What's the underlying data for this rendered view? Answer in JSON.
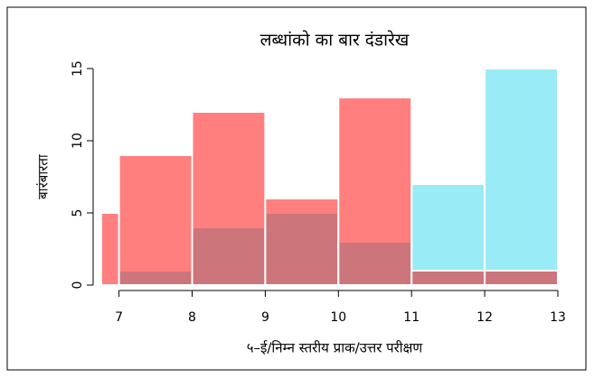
{
  "chart_data": {
    "type": "histogram",
    "title": "लब्धांको का बार दंडारेख",
    "xlabel": "५–ई/निम्न स्तरीय प्राक/उत्तर परीक्षण",
    "ylabel": "बारंबारता",
    "bins": [
      6,
      7,
      8,
      9,
      10,
      11,
      12,
      13
    ],
    "series": [
      {
        "color": "rgba(0,206,230,0.4)",
        "values": [
          0,
          1,
          4,
          5,
          3,
          7,
          15
        ]
      },
      {
        "color": "rgba(255,0,0,0.5)",
        "values": [
          5,
          9,
          12,
          6,
          13,
          1,
          1
        ]
      }
    ],
    "xlim": [
      6.77,
      13
    ],
    "xticks": [
      7,
      8,
      9,
      10,
      11,
      12,
      13
    ],
    "ylim": [
      0,
      15
    ],
    "yticks": [
      0,
      5,
      10,
      15
    ]
  }
}
